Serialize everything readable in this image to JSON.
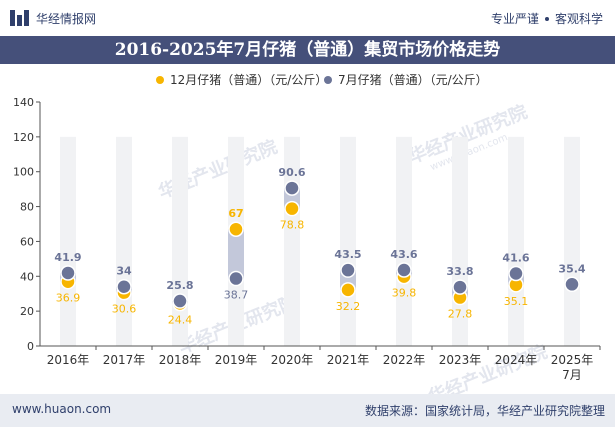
{
  "header": {
    "brand": "华经情报网",
    "tag_left": "专业严谨",
    "tag_right": "客观科学"
  },
  "watermark_text": "华经产业研究院",
  "watermark_url": "www.huaon.com",
  "footer": {
    "url": "www.huaon.com",
    "source": "数据来源：国家统计局，华经产业研究院整理"
  },
  "colors": {
    "dec": "#f7b500",
    "jul": "#6b7497",
    "connector": "#c3c8da",
    "title_bg": "#45507a",
    "axis_text": "#333333"
  },
  "chart_data": {
    "type": "dumbbell",
    "title": "2016-2025年7月仔猪（普通）集贸市场价格走势",
    "categories": [
      "2016年",
      "2017年",
      "2018年",
      "2019年",
      "2020年",
      "2021年",
      "2022年",
      "2023年",
      "2024年",
      "2025年\n7月"
    ],
    "series": [
      {
        "name": "12月仔猪（普通）（元/公斤）",
        "values": [
          36.9,
          30.6,
          24.4,
          67,
          78.8,
          32.2,
          39.8,
          27.8,
          35.1,
          null
        ]
      },
      {
        "name": "7月仔猪（普通）（元/公斤）",
        "values": [
          41.9,
          34,
          25.8,
          38.7,
          90.6,
          43.5,
          43.6,
          33.8,
          41.6,
          35.4
        ]
      }
    ],
    "ylim": [
      0,
      140
    ],
    "yticks": [
      0,
      20,
      40,
      60,
      80,
      100,
      120,
      140
    ],
    "grid": false,
    "legend_position": "top"
  }
}
